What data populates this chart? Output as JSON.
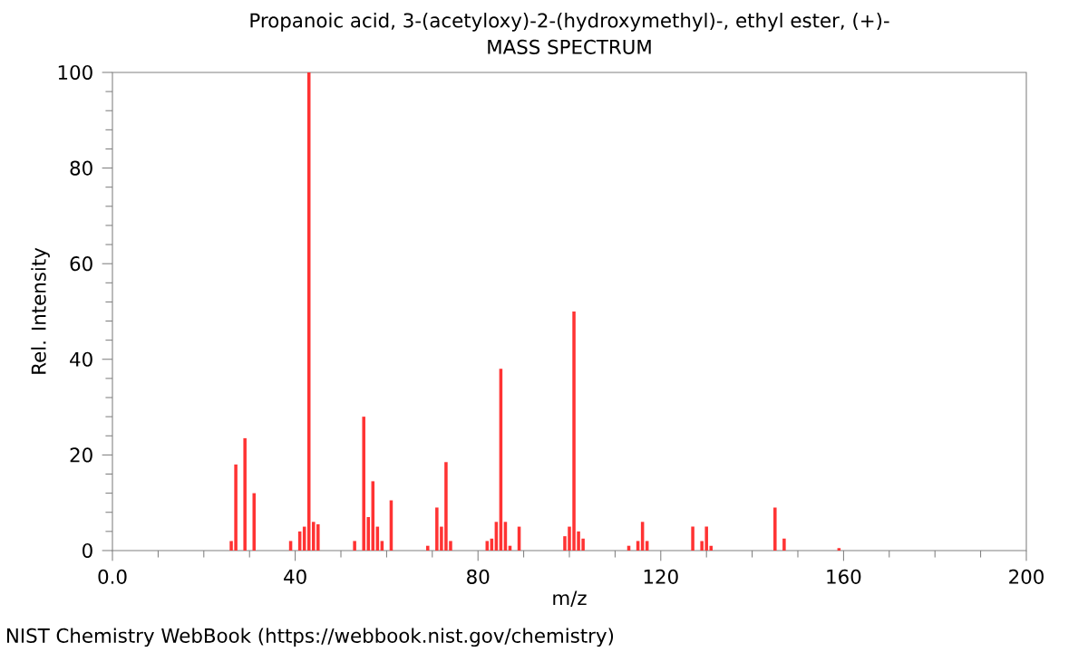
{
  "chart_data": {
    "type": "bar",
    "title": "Propanoic acid, 3-(acetyloxy)-2-(hydroxymethyl)-, ethyl ester, (+)-",
    "subtitle": "MASS SPECTRUM",
    "xlabel": "m/z",
    "ylabel": "Rel. Intensity",
    "x": [
      26,
      27,
      29,
      31,
      39,
      41,
      42,
      43,
      44,
      45,
      53,
      55,
      56,
      57,
      58,
      59,
      61,
      69,
      71,
      72,
      73,
      74,
      82,
      83,
      84,
      85,
      86,
      87,
      89,
      99,
      100,
      101,
      102,
      103,
      113,
      115,
      116,
      117,
      127,
      129,
      130,
      131,
      145,
      147,
      159
    ],
    "series": [
      {
        "color": "#ff3333",
        "values": [
          2,
          18,
          23.5,
          12,
          2,
          4,
          5,
          100,
          6,
          5.5,
          2,
          28,
          7,
          14.5,
          5,
          2,
          10.5,
          1,
          9,
          5,
          18.5,
          2,
          2,
          2.5,
          6,
          38,
          6,
          1,
          5,
          3,
          5,
          50,
          4,
          2.5,
          1,
          2,
          6,
          2,
          5,
          2,
          5,
          1,
          9,
          2.5,
          0.5
        ]
      }
    ],
    "xlim": [
      0,
      200
    ],
    "ylim": [
      0,
      100
    ],
    "xticks": [
      {
        "value": 0,
        "label": "0.0"
      },
      40,
      80,
      120,
      160,
      200
    ],
    "yticks": [
      0,
      20,
      40,
      60,
      80,
      100
    ],
    "annotations": [
      "NIST Chemistry WebBook (https://webbook.nist.gov/chemistry)"
    ]
  }
}
